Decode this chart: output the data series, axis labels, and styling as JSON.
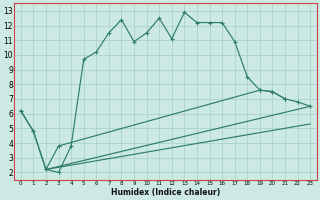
{
  "xlabel": "Humidex (Indice chaleur)",
  "bg_color": "#cce9e3",
  "grid_color": "#aad4cc",
  "line_color": "#2e7d6e",
  "spine_color": "#cc4444",
  "xlim": [
    -0.5,
    23.5
  ],
  "ylim": [
    1.5,
    13.5
  ],
  "xticks": [
    0,
    1,
    2,
    3,
    4,
    5,
    6,
    7,
    8,
    9,
    10,
    11,
    12,
    13,
    14,
    15,
    16,
    17,
    18,
    19,
    20,
    21,
    22,
    23
  ],
  "yticks": [
    2,
    3,
    4,
    5,
    6,
    7,
    8,
    9,
    10,
    11,
    12,
    13
  ],
  "series1_x": [
    0,
    1,
    2,
    3,
    4,
    5,
    6,
    7,
    8,
    9,
    10,
    11,
    12,
    13,
    14,
    15,
    16,
    17,
    18,
    19,
    20,
    21
  ],
  "series1_y": [
    6.2,
    4.8,
    2.2,
    2.0,
    3.8,
    9.7,
    10.2,
    11.5,
    12.4,
    10.9,
    11.5,
    12.5,
    11.1,
    12.9,
    12.2,
    12.2,
    12.2,
    10.9,
    8.5,
    7.6,
    7.5,
    7.0
  ],
  "series2_x": [
    0,
    1,
    2,
    3,
    19,
    20,
    21,
    22,
    23
  ],
  "series2_y": [
    6.2,
    4.8,
    2.2,
    3.8,
    7.6,
    7.5,
    7.0,
    6.8,
    6.5
  ],
  "series3_x": [
    2,
    23
  ],
  "series3_y": [
    2.2,
    6.5
  ],
  "series4_x": [
    2,
    23
  ],
  "series4_y": [
    2.2,
    5.3
  ]
}
